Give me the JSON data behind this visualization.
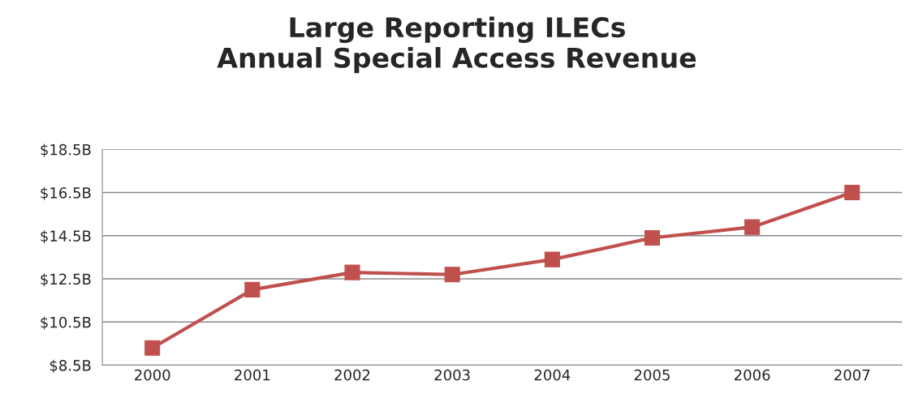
{
  "chart_data": {
    "type": "line",
    "title": "Large Reporting ILECs\nAnnual Special Access Revenue",
    "categories": [
      "2000",
      "2001",
      "2002",
      "2003",
      "2004",
      "2005",
      "2006",
      "2007"
    ],
    "series": [
      {
        "color": "#c0504d",
        "values": [
          9.3,
          12.0,
          12.8,
          12.7,
          13.4,
          14.4,
          14.9,
          16.5
        ]
      }
    ],
    "ylim": [
      8.5,
      18.5
    ],
    "yticks": [
      {
        "value": 8.5,
        "label": "$8.5B"
      },
      {
        "value": 10.5,
        "label": "$10.5B"
      },
      {
        "value": 12.5,
        "label": "$12.5B"
      },
      {
        "value": 14.5,
        "label": "$14.5B"
      },
      {
        "value": 16.5,
        "label": "$16.5B"
      },
      {
        "value": 18.5,
        "label": "$18.5B"
      }
    ],
    "grid": "y",
    "marker": "square",
    "line_style": "solid"
  }
}
